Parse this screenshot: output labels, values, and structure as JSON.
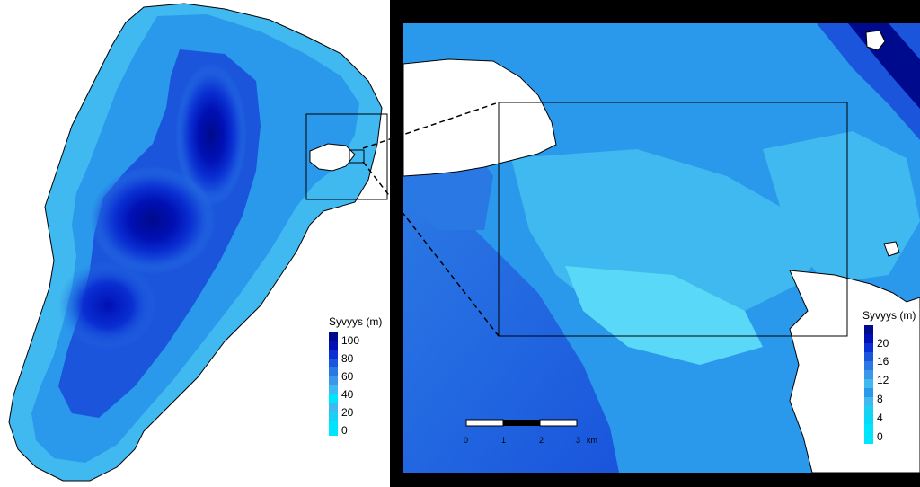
{
  "overview_legend": {
    "title": "Syvyys (m)",
    "labels": [
      "100",
      "80",
      "60",
      "40",
      "20",
      "0"
    ]
  },
  "detail_legend": {
    "title": "Syvyys (m)",
    "labels": [
      "20",
      "16",
      "12",
      "8",
      "4",
      "0"
    ]
  },
  "scale_bar": {
    "labels": [
      "0",
      "1",
      "2",
      "3"
    ],
    "unit": "km"
  },
  "depth_colors": [
    "#000a8c",
    "#0010b4",
    "#0a2fd2",
    "#1a55dc",
    "#2a78e4",
    "#3a98eb",
    "#3fb9ef",
    "#00e5ff"
  ],
  "colors": {
    "land": "#ffffff",
    "coastline": "#000000",
    "frame": "#000000"
  }
}
